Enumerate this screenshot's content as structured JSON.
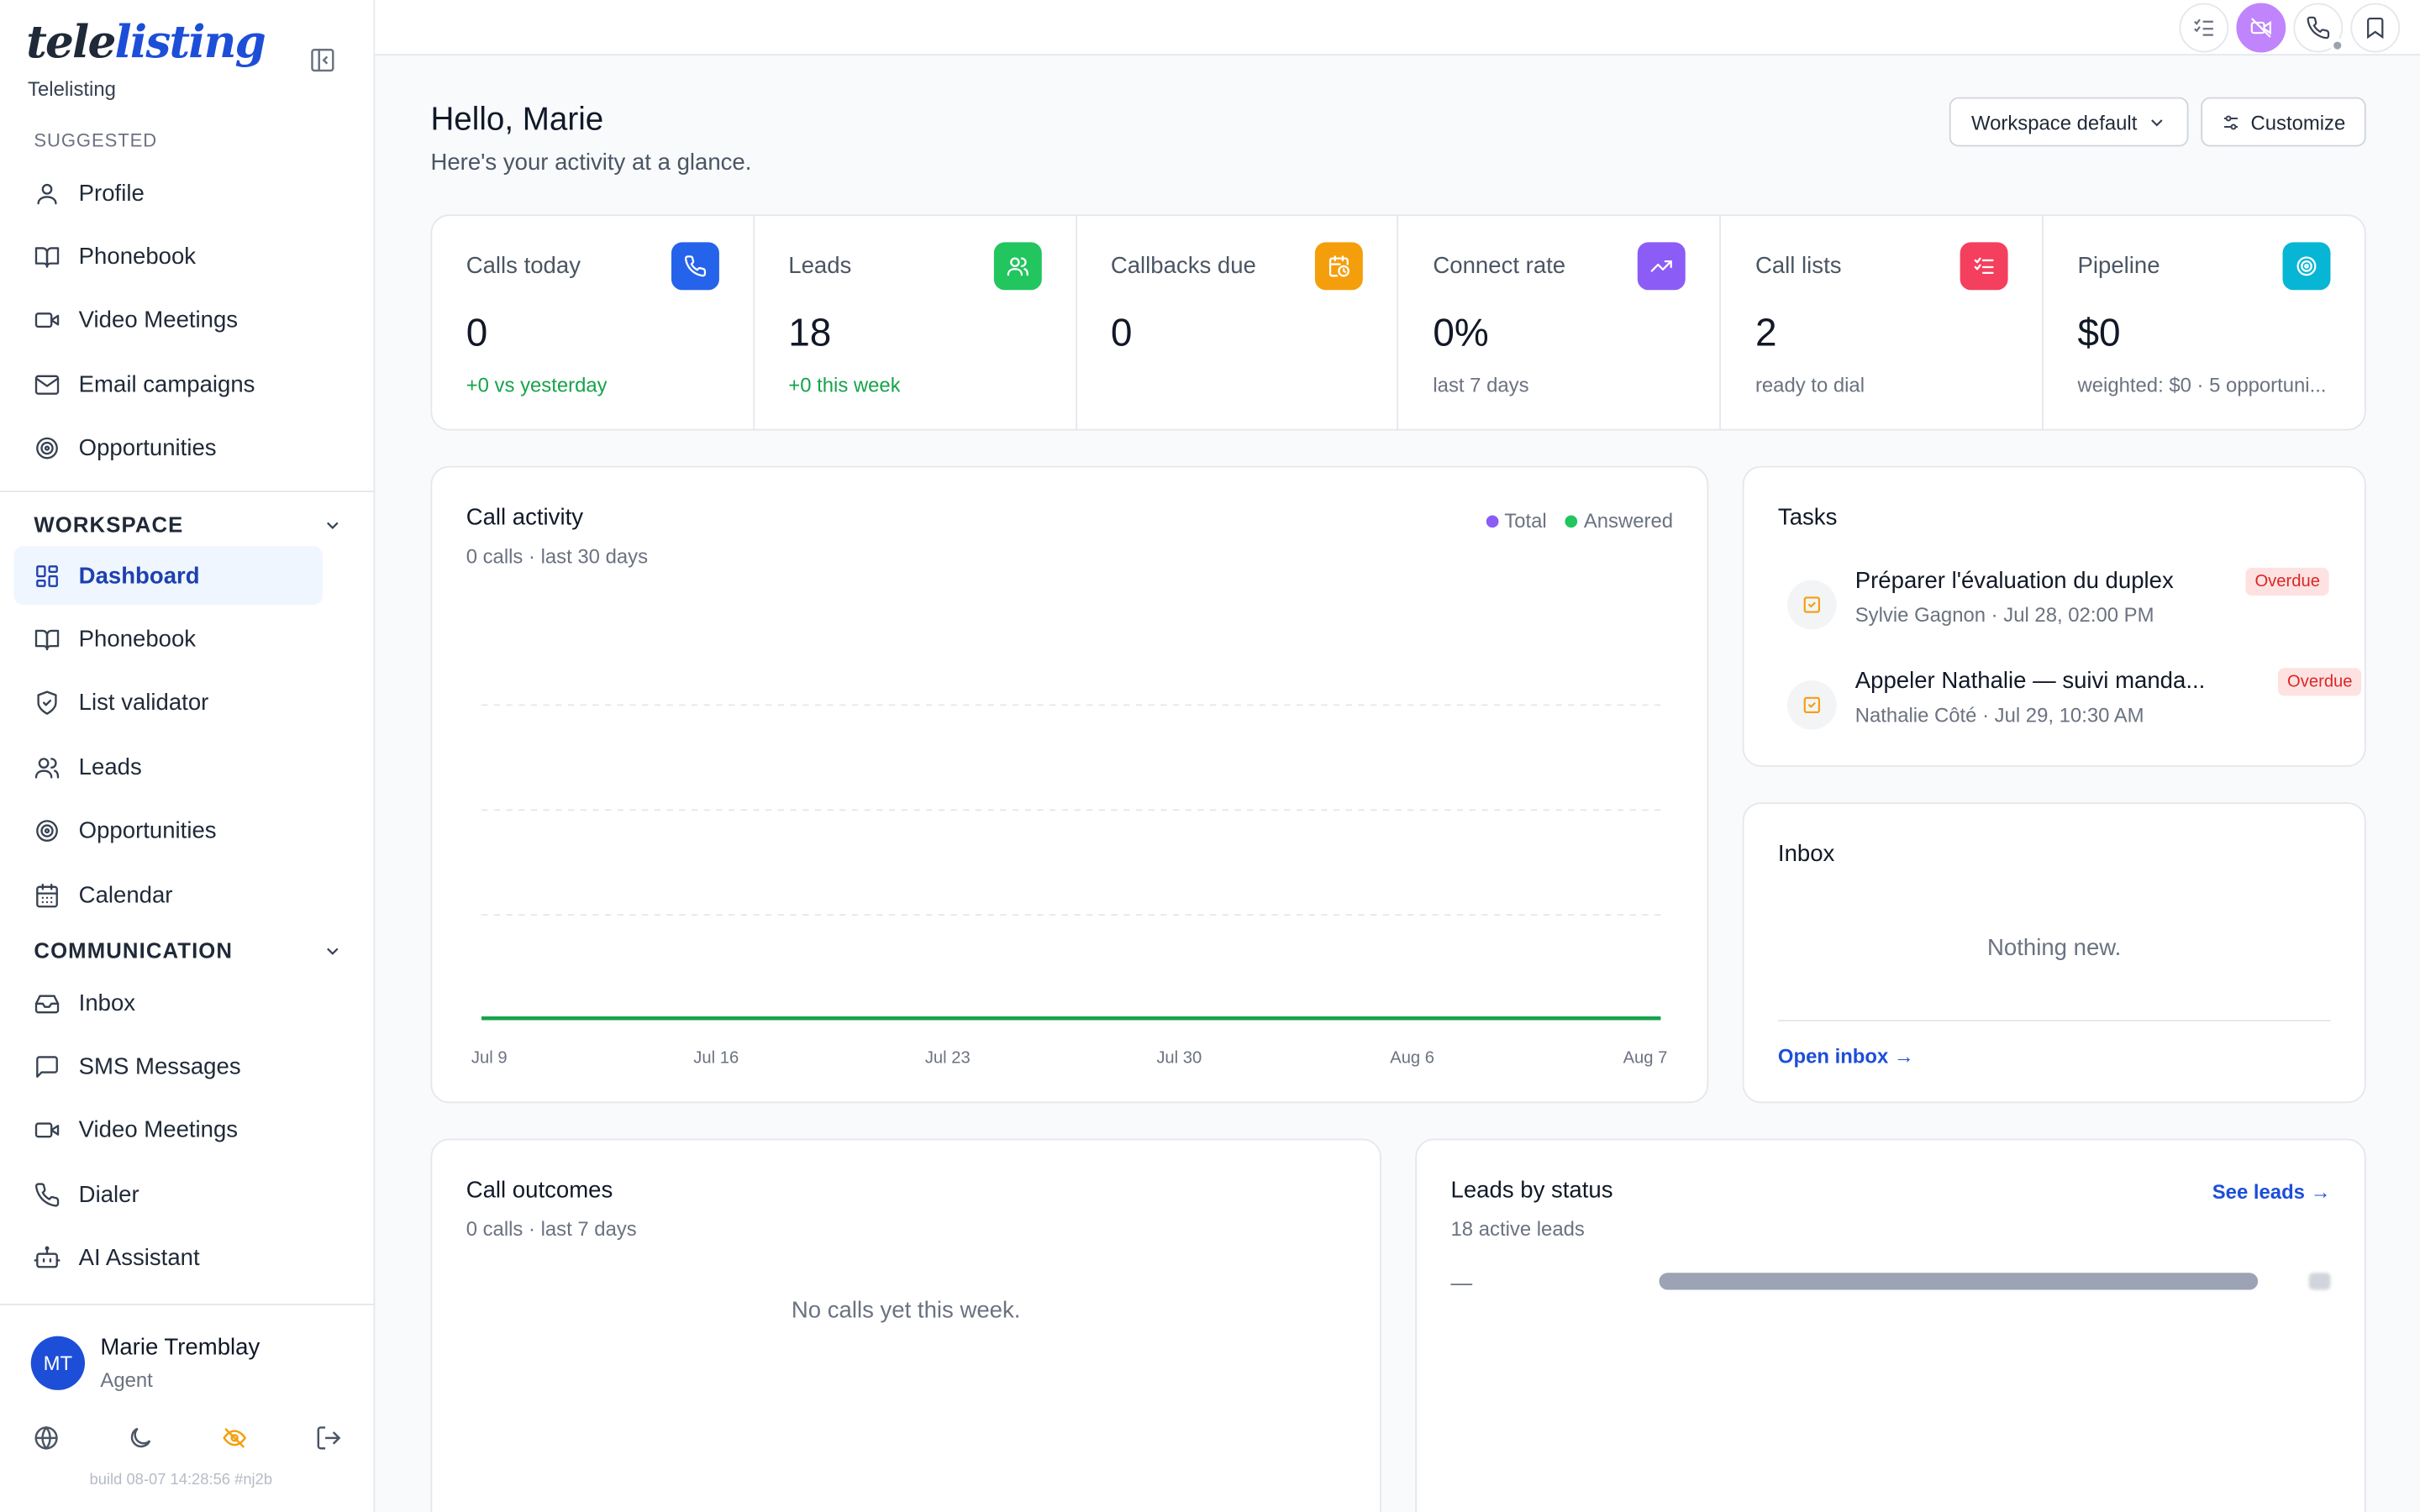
{
  "brand": {
    "logo_part1": "tele",
    "logo_part2": "listing",
    "subtitle": "Telelisting"
  },
  "sidebar": {
    "suggested_label": "SUGGESTED",
    "suggested": [
      {
        "label": "Profile",
        "icon": "user-icon"
      },
      {
        "label": "Phonebook",
        "icon": "book-icon"
      },
      {
        "label": "Video Meetings",
        "icon": "video-icon"
      },
      {
        "label": "Email campaigns",
        "icon": "mail-icon"
      },
      {
        "label": "Opportunities",
        "icon": "target-icon"
      }
    ],
    "workspace_label": "WORKSPACE",
    "workspace": [
      {
        "label": "Dashboard",
        "icon": "grid-icon",
        "active": true
      },
      {
        "label": "Phonebook",
        "icon": "book-icon"
      },
      {
        "label": "List validator",
        "icon": "shield-check-icon"
      },
      {
        "label": "Leads",
        "icon": "users-icon"
      },
      {
        "label": "Opportunities",
        "icon": "target-icon"
      },
      {
        "label": "Calendar",
        "icon": "calendar-icon"
      }
    ],
    "communication_label": "COMMUNICATION",
    "communication": [
      {
        "label": "Inbox",
        "icon": "inbox-icon"
      },
      {
        "label": "SMS Messages",
        "icon": "message-icon"
      },
      {
        "label": "Video Meetings",
        "icon": "video-icon"
      },
      {
        "label": "Dialer",
        "icon": "phone-icon"
      },
      {
        "label": "AI Assistant",
        "icon": "bot-icon"
      }
    ],
    "user": {
      "initials": "MT",
      "name": "Marie Tremblay",
      "role": "Agent"
    },
    "build": "build 08-07 14:28:56 #nj2b"
  },
  "header": {
    "greeting": "Hello, Marie",
    "subtitle": "Here's your activity at a glance.",
    "workspace_select": "Workspace default",
    "customize": "Customize"
  },
  "colors": {
    "accent": "#1d4ed8",
    "calls_today": "#2563eb",
    "leads": "#22c55e",
    "callbacks": "#f59e0b",
    "connect": "#8b5cf6",
    "call_lists": "#f43f5e",
    "pipeline": "#06b6d4",
    "answered": "#16a34a",
    "total": "#8b5cf6"
  },
  "stats": [
    {
      "label": "Calls today",
      "value": "0",
      "sub": "+0 vs yesterday",
      "positive": true,
      "icon": "phone-icon",
      "color": "#2563eb"
    },
    {
      "label": "Leads",
      "value": "18",
      "sub": "+0 this week",
      "positive": true,
      "icon": "users-icon",
      "color": "#22c55e"
    },
    {
      "label": "Callbacks due",
      "value": "0",
      "sub": "",
      "positive": false,
      "icon": "calendar-clock-icon",
      "color": "#f59e0b"
    },
    {
      "label": "Connect rate",
      "value": "0%",
      "sub": "last 7 days",
      "positive": false,
      "icon": "trending-up-icon",
      "color": "#8b5cf6"
    },
    {
      "label": "Call lists",
      "value": "2",
      "sub": "ready to dial",
      "positive": false,
      "icon": "list-check-icon",
      "color": "#f43f5e"
    },
    {
      "label": "Pipeline",
      "value": "$0",
      "sub": "weighted: $0 · 5 opportuni...",
      "positive": false,
      "icon": "target-icon",
      "color": "#06b6d4"
    }
  ],
  "call_activity": {
    "title": "Call activity",
    "subtitle": "0 calls · last 30 days",
    "legend": [
      "Total",
      "Answered"
    ]
  },
  "chart_data": {
    "type": "line",
    "title": "Call activity",
    "x": [
      "Jul 9",
      "Jul 16",
      "Jul 23",
      "Jul 30",
      "Aug 6",
      "Aug 7"
    ],
    "series": [
      {
        "name": "Total",
        "values": [
          0,
          0,
          0,
          0,
          0,
          0
        ],
        "color": "#8b5cf6"
      },
      {
        "name": "Answered",
        "values": [
          0,
          0,
          0,
          0,
          0,
          0
        ],
        "color": "#16a34a"
      }
    ],
    "grid": true,
    "legend": "top-right"
  },
  "tasks": {
    "title": "Tasks",
    "items": [
      {
        "title": "Préparer l'évaluation du duplex",
        "meta": "Sylvie Gagnon · Jul 28, 02:00 PM",
        "badge": "Overdue"
      },
      {
        "title": "Appeler Nathalie — suivi manda...",
        "meta": "Nathalie Côté · Jul 29, 10:30 AM",
        "badge": "Overdue"
      }
    ]
  },
  "inbox": {
    "title": "Inbox",
    "empty": "Nothing new.",
    "link": "Open inbox →"
  },
  "call_outcomes": {
    "title": "Call outcomes",
    "subtitle": "0 calls · last 7 days",
    "empty": "No calls yet this week."
  },
  "leads_by_status": {
    "title": "Leads by status",
    "subtitle": "18 active leads",
    "link": "See leads →",
    "row_label": "—",
    "row_fraction": 1.0
  }
}
